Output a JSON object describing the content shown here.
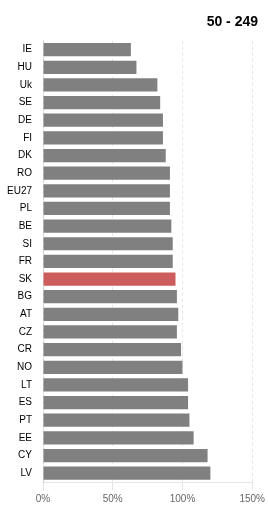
{
  "chart_data": {
    "type": "bar",
    "orientation": "horizontal",
    "title": "50 - 249",
    "categories": [
      "IE",
      "HU",
      "Uk",
      "SE",
      "DE",
      "FI",
      "DK",
      "RO",
      "EU27",
      "PL",
      "BE",
      "SI",
      "FR",
      "SK",
      "BG",
      "AT",
      "CZ",
      "CR",
      "NO",
      "LT",
      "ES",
      "PT",
      "EE",
      "CY",
      "LV"
    ],
    "values": [
      63,
      67,
      82,
      84,
      86,
      86,
      88,
      91,
      91,
      91,
      92,
      93,
      93,
      95,
      96,
      97,
      96,
      99,
      100,
      104,
      104,
      105,
      108,
      118,
      120
    ],
    "colors": [
      "#808080",
      "#808080",
      "#808080",
      "#808080",
      "#808080",
      "#808080",
      "#808080",
      "#808080",
      "#808080",
      "#808080",
      "#808080",
      "#808080",
      "#808080",
      "#cd5c5c",
      "#808080",
      "#808080",
      "#808080",
      "#808080",
      "#808080",
      "#808080",
      "#808080",
      "#808080",
      "#808080",
      "#808080",
      "#808080"
    ],
    "xlim": [
      0,
      150
    ],
    "xticks": [
      {
        "value": 0,
        "label": "0%"
      },
      {
        "value": 50,
        "label": "50%"
      },
      {
        "value": 100,
        "label": "100%"
      },
      {
        "value": 150,
        "label": "150%"
      }
    ],
    "grid": true
  }
}
